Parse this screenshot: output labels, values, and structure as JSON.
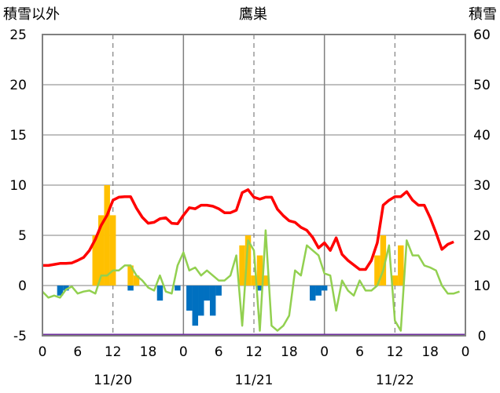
{
  "chart_data": {
    "type": "bar",
    "title": "鷹巣",
    "left_axis_label": "積雪以外",
    "right_axis_label": "積雪",
    "left_ylim": [
      -5,
      25
    ],
    "left_ticks": [
      "25",
      "20",
      "15",
      "10",
      "5",
      "0",
      "-5"
    ],
    "right_ylim": [
      0,
      60
    ],
    "right_ticks": [
      "60",
      "50",
      "40",
      "30",
      "20",
      "10",
      "0"
    ],
    "x_range_hours": [
      0,
      72
    ],
    "x_tick_labels": [
      "0",
      "6",
      "12",
      "18",
      "0",
      "6",
      "12",
      "18",
      "0",
      "6",
      "12",
      "18",
      "0"
    ],
    "date_labels": [
      "11/20",
      "11/21",
      "11/22"
    ],
    "grid": true,
    "colors": {
      "snow_depth": "#FF0000",
      "temperature": "#92D050",
      "snowfall": "#FFC000",
      "snowfall_decrease": "#0070C0",
      "baseline": "#7030A0",
      "grid_day": "#808080",
      "grid": "#808080"
    },
    "series": [
      {
        "key": "snowfall",
        "axis": "left",
        "kind": "bar",
        "bars": [
          {
            "x": 9,
            "v": 5
          },
          {
            "x": 10,
            "v": 7
          },
          {
            "x": 11,
            "v": 10
          },
          {
            "x": 12,
            "v": 7
          },
          {
            "x": 15,
            "v": 2
          },
          {
            "x": 16,
            "v": 1
          },
          {
            "x": 34,
            "v": 4
          },
          {
            "x": 35,
            "v": 5
          },
          {
            "x": 36,
            "v": 1
          },
          {
            "x": 37,
            "v": 3
          },
          {
            "x": 38,
            "v": 1
          },
          {
            "x": 57,
            "v": 3
          },
          {
            "x": 58,
            "v": 5
          },
          {
            "x": 60,
            "v": 1
          },
          {
            "x": 61,
            "v": 4
          }
        ]
      },
      {
        "key": "snowfall_decrease",
        "axis": "left",
        "kind": "bar",
        "bars": [
          {
            "x": 3,
            "v": -1
          },
          {
            "x": 4,
            "v": -0.5
          },
          {
            "x": 15,
            "v": -0.5
          },
          {
            "x": 20,
            "v": -1.5
          },
          {
            "x": 23,
            "v": -0.5
          },
          {
            "x": 25,
            "v": -2.5
          },
          {
            "x": 26,
            "v": -4
          },
          {
            "x": 27,
            "v": -3
          },
          {
            "x": 28,
            "v": -1.5
          },
          {
            "x": 29,
            "v": -3
          },
          {
            "x": 30,
            "v": -1
          },
          {
            "x": 37,
            "v": -0.5
          },
          {
            "x": 46,
            "v": -1.5
          },
          {
            "x": 47,
            "v": -1
          },
          {
            "x": 48,
            "v": -0.5
          }
        ]
      },
      {
        "key": "snow_depth",
        "axis": "right",
        "kind": "line",
        "points": [
          [
            0,
            14
          ],
          [
            1,
            14
          ],
          [
            2,
            14.2
          ],
          [
            3,
            14.4
          ],
          [
            4,
            14.4
          ],
          [
            5,
            14.5
          ],
          [
            6,
            15
          ],
          [
            7,
            15.6
          ],
          [
            8,
            17
          ],
          [
            9,
            19.2
          ],
          [
            10,
            22
          ],
          [
            11,
            24
          ],
          [
            12,
            27
          ],
          [
            13,
            27.6
          ],
          [
            14,
            27.7
          ],
          [
            15,
            27.7
          ],
          [
            16,
            25.4
          ],
          [
            17,
            23.6
          ],
          [
            18,
            22.4
          ],
          [
            19,
            22.6
          ],
          [
            20,
            23.3
          ],
          [
            21,
            23.5
          ],
          [
            22,
            22.4
          ],
          [
            23,
            22.3
          ],
          [
            24,
            24
          ],
          [
            25,
            25.5
          ],
          [
            26,
            25.3
          ],
          [
            27,
            26
          ],
          [
            28,
            26
          ],
          [
            29,
            25.8
          ],
          [
            30,
            25.3
          ],
          [
            31,
            24.5
          ],
          [
            32,
            24.5
          ],
          [
            33,
            25
          ],
          [
            34,
            28.5
          ],
          [
            35,
            29.1
          ],
          [
            36,
            27.6
          ],
          [
            37,
            27.2
          ],
          [
            38,
            27.6
          ],
          [
            39,
            27.6
          ],
          [
            40,
            25.2
          ],
          [
            41,
            23.9
          ],
          [
            42,
            22.9
          ],
          [
            43,
            22.6
          ],
          [
            44,
            21.6
          ],
          [
            45,
            21
          ],
          [
            46,
            19.6
          ],
          [
            47,
            17.5
          ],
          [
            48,
            18.5
          ],
          [
            49,
            17
          ],
          [
            50,
            19.5
          ],
          [
            51,
            16.2
          ],
          [
            52,
            15
          ],
          [
            53,
            14.1
          ],
          [
            54,
            13.2
          ],
          [
            55,
            13.2
          ],
          [
            56,
            15
          ],
          [
            57,
            18.5
          ],
          [
            58,
            26
          ],
          [
            59,
            27
          ],
          [
            60,
            27.7
          ],
          [
            61,
            27.7
          ],
          [
            62,
            28.7
          ],
          [
            63,
            27
          ],
          [
            64,
            26
          ],
          [
            65,
            26
          ],
          [
            66,
            23.5
          ],
          [
            67,
            20.5
          ],
          [
            68,
            17.2
          ],
          [
            69,
            18.2
          ],
          [
            70,
            18.7
          ]
        ]
      },
      {
        "key": "temperature",
        "axis": "left",
        "kind": "line",
        "points": [
          [
            0,
            -0.6
          ],
          [
            1,
            -1.2
          ],
          [
            2,
            -1
          ],
          [
            3,
            -1.2
          ],
          [
            4,
            -0.4
          ],
          [
            5,
            -0.1
          ],
          [
            6,
            -0.8
          ],
          [
            7,
            -0.6
          ],
          [
            8,
            -0.5
          ],
          [
            9,
            -0.8
          ],
          [
            10,
            1
          ],
          [
            11,
            1
          ],
          [
            12,
            1.5
          ],
          [
            13,
            1.5
          ],
          [
            14,
            2
          ],
          [
            15,
            2
          ],
          [
            16,
            1
          ],
          [
            17,
            0.5
          ],
          [
            18,
            -0.2
          ],
          [
            19,
            -0.5
          ],
          [
            20,
            1
          ],
          [
            21,
            -0.6
          ],
          [
            22,
            -0.8
          ],
          [
            23,
            2
          ],
          [
            24,
            3.3
          ],
          [
            25,
            1.5
          ],
          [
            26,
            1.8
          ],
          [
            27,
            1
          ],
          [
            28,
            1.5
          ],
          [
            29,
            1
          ],
          [
            30,
            0.5
          ],
          [
            31,
            0.5
          ],
          [
            32,
            1
          ],
          [
            33,
            3
          ],
          [
            34,
            -4
          ],
          [
            35,
            4.5
          ],
          [
            36,
            3.5
          ],
          [
            37,
            -4.5
          ],
          [
            38,
            5.5
          ],
          [
            39,
            -4
          ],
          [
            40,
            -4.5
          ],
          [
            41,
            -4
          ],
          [
            42,
            -3
          ],
          [
            43,
            1.5
          ],
          [
            44,
            1
          ],
          [
            45,
            4
          ],
          [
            46,
            3.5
          ],
          [
            47,
            3
          ],
          [
            48,
            1.2
          ],
          [
            49,
            1
          ],
          [
            50,
            -2.5
          ],
          [
            51,
            0.5
          ],
          [
            52,
            -0.5
          ],
          [
            53,
            -1
          ],
          [
            54,
            0.5
          ],
          [
            55,
            -0.5
          ],
          [
            56,
            -0.5
          ],
          [
            57,
            0
          ],
          [
            58,
            1.5
          ],
          [
            59,
            4
          ],
          [
            60,
            -3.5
          ],
          [
            61,
            -4.5
          ],
          [
            62,
            4.5
          ],
          [
            63,
            3
          ],
          [
            64,
            3
          ],
          [
            65,
            2
          ],
          [
            66,
            1.8
          ],
          [
            67,
            1.5
          ],
          [
            68,
            0
          ],
          [
            69,
            -0.8
          ],
          [
            70,
            -0.8
          ],
          [
            71,
            -0.6
          ]
        ]
      }
    ]
  }
}
